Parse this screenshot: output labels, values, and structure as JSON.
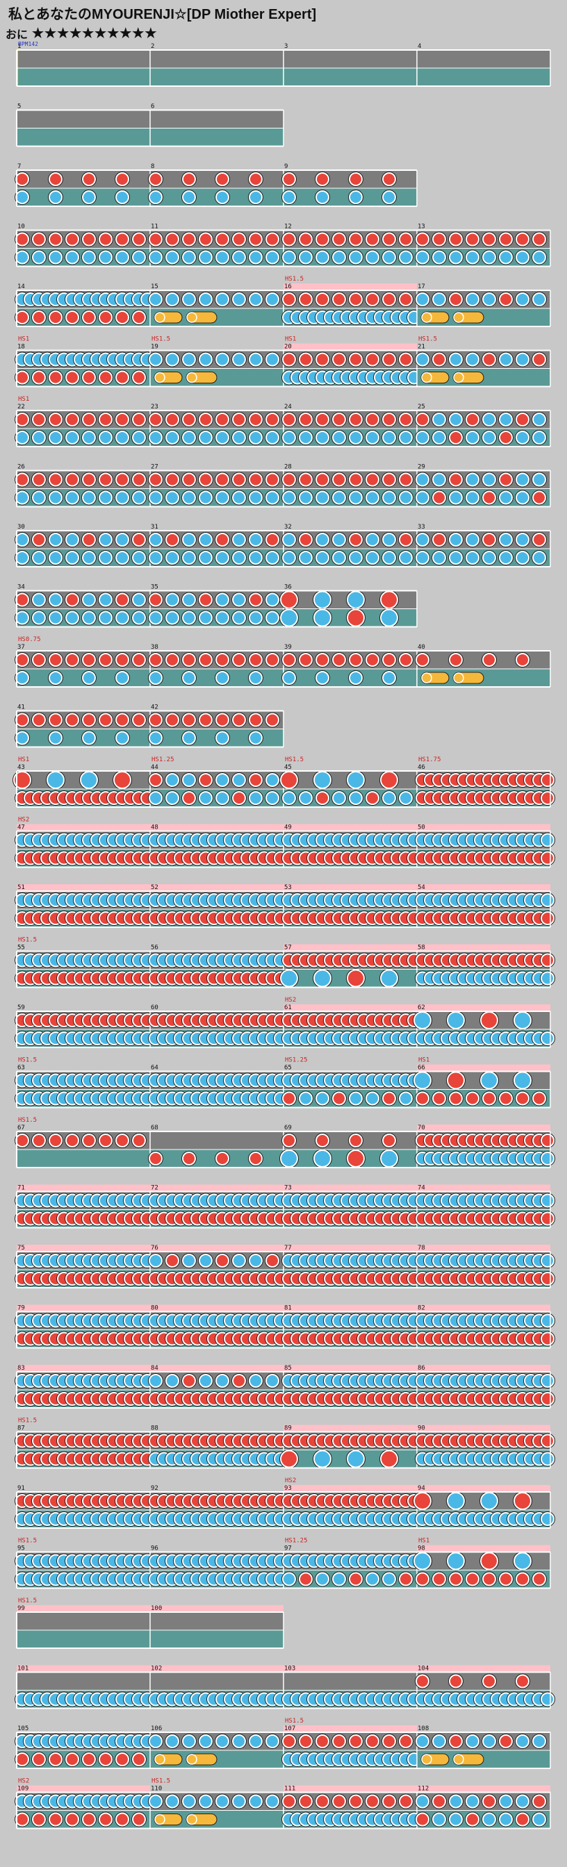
{
  "title": "私とあなたのMYOURENJI☆[DP Miother Expert]",
  "difficulty": {
    "label": "おに",
    "stars": "★★★★★★★★★★"
  },
  "bpm_label": "BPM142",
  "palette": {
    "background": "#c8c8c8",
    "lane_gray": "#7d7d7d",
    "lane_teal": "#5a9a96",
    "gogo_pink": "#ffc0c8",
    "don_red": "#e8443a",
    "ka_blue": "#4ab8e6",
    "drumroll_yellow": "#f6b83a",
    "marker_red": "#cc2222",
    "bpm_blue": "#2233cc"
  },
  "chart": {
    "rows": [
      {
        "bars": [
          {
            "n": "1",
            "p": "none",
            "q": "none",
            "bpm": "BPM142"
          },
          {
            "n": "2",
            "p": "none",
            "q": "none"
          },
          {
            "n": "3",
            "p": "none",
            "q": "none"
          },
          {
            "n": "4",
            "p": "none",
            "q": "none"
          }
        ]
      },
      {
        "bars": [
          {
            "n": "5",
            "p": "none",
            "q": "none"
          },
          {
            "n": "6",
            "p": "none",
            "q": "none"
          }
        ]
      },
      {
        "bars": [
          {
            "n": "7",
            "p": "red4",
            "q": "blue4"
          },
          {
            "n": "8",
            "p": "red4",
            "q": "blue4"
          },
          {
            "n": "9",
            "p": "red4",
            "q": "blue4"
          }
        ]
      },
      {
        "bars": [
          {
            "n": "10",
            "p": "red8",
            "q": "blue8"
          },
          {
            "n": "11",
            "p": "red8",
            "q": "blue8"
          },
          {
            "n": "12",
            "p": "red8",
            "q": "blue8"
          },
          {
            "n": "13",
            "p": "red8",
            "q": "blue8"
          }
        ]
      },
      {
        "bars": [
          {
            "n": "14",
            "p": "blue16",
            "q": "red8"
          },
          {
            "n": "15",
            "p": "blue8",
            "q": "roll"
          },
          {
            "n": "16",
            "p": "red8",
            "q": "blue16",
            "gogo": true,
            "marker": "HS1.5"
          },
          {
            "n": "17",
            "p": "mixed",
            "q": "roll"
          }
        ]
      },
      {
        "bars": [
          {
            "n": "18",
            "p": "blue16",
            "q": "red8",
            "marker": "HS1"
          },
          {
            "n": "19",
            "p": "blue8",
            "q": "roll",
            "marker": "HS1.5"
          },
          {
            "n": "20",
            "p": "red8",
            "q": "blue16",
            "gogo": true,
            "marker": "HS1"
          },
          {
            "n": "21",
            "p": "mixed",
            "q": "roll",
            "marker": "HS1.5"
          }
        ]
      },
      {
        "bars": [
          {
            "n": "22",
            "p": "red8",
            "q": "blue8",
            "marker": "HS1"
          },
          {
            "n": "23",
            "p": "red8",
            "q": "blue8"
          },
          {
            "n": "24",
            "p": "red8",
            "q": "blue8"
          },
          {
            "n": "25",
            "p": "mixed",
            "q": "mixed"
          }
        ]
      },
      {
        "bars": [
          {
            "n": "26",
            "p": "red8",
            "q": "blue8"
          },
          {
            "n": "27",
            "p": "red8",
            "q": "blue8"
          },
          {
            "n": "28",
            "p": "red8",
            "q": "blue8"
          },
          {
            "n": "29",
            "p": "mixed",
            "q": "mixed"
          }
        ]
      },
      {
        "bars": [
          {
            "n": "30",
            "p": "mixed",
            "q": "blue8"
          },
          {
            "n": "31",
            "p": "mixed",
            "q": "blue8"
          },
          {
            "n": "32",
            "p": "mixed",
            "q": "blue8"
          },
          {
            "n": "33",
            "p": "mixed",
            "q": "blue8"
          }
        ]
      },
      {
        "bars": [
          {
            "n": "34",
            "p": "mixed",
            "q": "blue8"
          },
          {
            "n": "35",
            "p": "mixed",
            "q": "blue8"
          },
          {
            "n": "36",
            "p": "big",
            "q": "big"
          }
        ]
      },
      {
        "bars": [
          {
            "n": "37",
            "p": "red8",
            "q": "blue4",
            "marker": "HS0.75"
          },
          {
            "n": "38",
            "p": "red8",
            "q": "blue4"
          },
          {
            "n": "39",
            "p": "red8",
            "q": "blue4"
          },
          {
            "n": "40",
            "p": "red4",
            "q": "roll"
          }
        ]
      },
      {
        "bars": [
          {
            "n": "41",
            "p": "red8",
            "q": "blue4"
          },
          {
            "n": "42",
            "p": "red8",
            "q": "blue4"
          }
        ]
      },
      {
        "bars": [
          {
            "n": "43",
            "p": "big",
            "q": "red16",
            "marker": "HS1"
          },
          {
            "n": "44",
            "p": "mixed",
            "q": "mixed",
            "marker": "HS1.25"
          },
          {
            "n": "45",
            "p": "big",
            "q": "mixed",
            "marker": "HS1.5"
          },
          {
            "n": "46",
            "p": "red16",
            "q": "red16",
            "marker": "HS1.75"
          }
        ]
      },
      {
        "bars": [
          {
            "n": "47",
            "p": "blue16",
            "q": "red16",
            "gogo": true,
            "marker": "HS2"
          },
          {
            "n": "48",
            "p": "blue16",
            "q": "red16",
            "gogo": true
          },
          {
            "n": "49",
            "p": "blue16",
            "q": "red16",
            "gogo": true
          },
          {
            "n": "50",
            "p": "blue16",
            "q": "red16",
            "gogo": true
          }
        ]
      },
      {
        "bars": [
          {
            "n": "51",
            "p": "blue16",
            "q": "red16",
            "gogo": true
          },
          {
            "n": "52",
            "p": "blue16",
            "q": "red16",
            "gogo": true
          },
          {
            "n": "53",
            "p": "blue16",
            "q": "red16",
            "gogo": true
          },
          {
            "n": "54",
            "p": "blue16",
            "q": "red16",
            "gogo": true
          }
        ]
      },
      {
        "bars": [
          {
            "n": "55",
            "p": "blue16",
            "q": "red16",
            "marker": "HS1.5"
          },
          {
            "n": "56",
            "p": "blue16",
            "q": "red16"
          },
          {
            "n": "57",
            "p": "red16",
            "q": "big",
            "gogo": true
          },
          {
            "n": "58",
            "p": "red16",
            "q": "blue16",
            "gogo": true
          }
        ]
      },
      {
        "bars": [
          {
            "n": "59",
            "p": "red16",
            "q": "blue16"
          },
          {
            "n": "60",
            "p": "red16",
            "q": "blue16"
          },
          {
            "n": "61",
            "p": "red16",
            "q": "blue16",
            "gogo": true,
            "marker": "HS2"
          },
          {
            "n": "62",
            "p": "big",
            "q": "blue16",
            "gogo": true
          }
        ]
      },
      {
        "bars": [
          {
            "n": "63",
            "p": "blue16",
            "q": "blue16",
            "marker": "HS1.5"
          },
          {
            "n": "64",
            "p": "blue16",
            "q": "blue16"
          },
          {
            "n": "65",
            "p": "blue16",
            "q": "mixed",
            "marker": "HS1.25"
          },
          {
            "n": "66",
            "p": "big",
            "q": "red8",
            "gogo": true,
            "marker": "HS1"
          }
        ]
      },
      {
        "bars": [
          {
            "n": "67",
            "p": "red8",
            "q": "none",
            "marker": "HS1.5"
          },
          {
            "n": "68",
            "p": "none",
            "q": "red4"
          },
          {
            "n": "69",
            "p": "red4",
            "q": "big"
          },
          {
            "n": "70",
            "p": "red16",
            "q": "blue16",
            "gogo": true
          }
        ]
      },
      {
        "bars": [
          {
            "n": "71",
            "p": "blue16",
            "q": "red16",
            "gogo": true
          },
          {
            "n": "72",
            "p": "blue16",
            "q": "red16",
            "gogo": true
          },
          {
            "n": "73",
            "p": "blue16",
            "q": "red16",
            "gogo": true
          },
          {
            "n": "74",
            "p": "blue16",
            "q": "red16",
            "gogo": true
          }
        ]
      },
      {
        "bars": [
          {
            "n": "75",
            "p": "blue16",
            "q": "red16",
            "gogo": true
          },
          {
            "n": "76",
            "p": "mixed",
            "q": "red16",
            "gogo": true
          },
          {
            "n": "77",
            "p": "blue16",
            "q": "red16",
            "gogo": true
          },
          {
            "n": "78",
            "p": "blue16",
            "q": "red16",
            "gogo": true
          }
        ]
      },
      {
        "bars": [
          {
            "n": "79",
            "p": "blue16",
            "q": "red16",
            "gogo": true
          },
          {
            "n": "80",
            "p": "blue16",
            "q": "red16",
            "gogo": true
          },
          {
            "n": "81",
            "p": "blue16",
            "q": "red16",
            "gogo": true
          },
          {
            "n": "82",
            "p": "blue16",
            "q": "red16",
            "gogo": true
          }
        ]
      },
      {
        "bars": [
          {
            "n": "83",
            "p": "blue16",
            "q": "red16",
            "gogo": true
          },
          {
            "n": "84",
            "p": "mixed",
            "q": "red16",
            "gogo": true
          },
          {
            "n": "85",
            "p": "blue16",
            "q": "red16",
            "gogo": true
          },
          {
            "n": "86",
            "p": "blue16",
            "q": "red16",
            "gogo": true
          }
        ]
      },
      {
        "bars": [
          {
            "n": "87",
            "p": "red16",
            "q": "red16",
            "marker": "HS1.5"
          },
          {
            "n": "88",
            "p": "red16",
            "q": "blue16"
          },
          {
            "n": "89",
            "p": "red16",
            "q": "big",
            "gogo": true
          },
          {
            "n": "90",
            "p": "red16",
            "q": "blue16",
            "gogo": true
          }
        ]
      },
      {
        "bars": [
          {
            "n": "91",
            "p": "red16",
            "q": "blue16"
          },
          {
            "n": "92",
            "p": "red16",
            "q": "blue16"
          },
          {
            "n": "93",
            "p": "red16",
            "q": "blue16",
            "gogo": true,
            "marker": "HS2"
          },
          {
            "n": "94",
            "p": "big",
            "q": "blue16",
            "gogo": true
          }
        ]
      },
      {
        "bars": [
          {
            "n": "95",
            "p": "blue16",
            "q": "blue16",
            "marker": "HS1.5"
          },
          {
            "n": "96",
            "p": "blue16",
            "q": "blue16"
          },
          {
            "n": "97",
            "p": "blue16",
            "q": "mixed",
            "marker": "HS1.25"
          },
          {
            "n": "98",
            "p": "big",
            "q": "red8",
            "gogo": true,
            "marker": "HS1"
          }
        ]
      },
      {
        "bars": [
          {
            "n": "99",
            "p": "none",
            "q": "none",
            "gogo": true,
            "marker": "HS1.5"
          },
          {
            "n": "100",
            "p": "none",
            "q": "none",
            "gogo": true
          }
        ]
      },
      {
        "bars": [
          {
            "n": "101",
            "p": "none",
            "q": "blue16",
            "gogo": true
          },
          {
            "n": "102",
            "p": "none",
            "q": "blue16",
            "gogo": true
          },
          {
            "n": "103",
            "p": "none",
            "q": "blue16",
            "gogo": true
          },
          {
            "n": "104",
            "p": "red4",
            "q": "blue16",
            "gogo": true
          }
        ]
      },
      {
        "bars": [
          {
            "n": "105",
            "p": "blue16",
            "q": "red8"
          },
          {
            "n": "106",
            "p": "blue8",
            "q": "roll"
          },
          {
            "n": "107",
            "p": "red8",
            "q": "blue16",
            "gogo": true,
            "marker": "HS1.5"
          },
          {
            "n": "108",
            "p": "mixed",
            "q": "roll"
          }
        ]
      },
      {
        "bars": [
          {
            "n": "109",
            "p": "blue16",
            "q": "red8",
            "gogo": true,
            "marker": "HS2"
          },
          {
            "n": "110",
            "p": "blue8",
            "q": "roll",
            "marker": "HS1.5"
          },
          {
            "n": "111",
            "p": "red8",
            "q": "blue16",
            "gogo": true
          },
          {
            "n": "112",
            "p": "mixed",
            "q": "mixed",
            "gogo": true
          }
        ]
      }
    ]
  }
}
